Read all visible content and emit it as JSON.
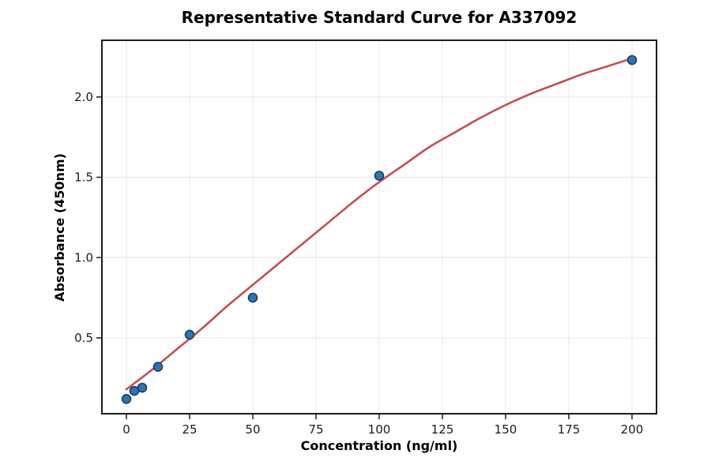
{
  "page": {
    "background": "#ffffff"
  },
  "chart_data": {
    "type": "scatter",
    "title": "Representative Standard Curve for A337092",
    "xlabel": "Concentration (ng/ml)",
    "ylabel": "Absorbance (450nm)",
    "xlim": [
      -9.69,
      209.69
    ],
    "ylim": [
      0.028,
      2.353
    ],
    "grid": true,
    "legend": "none",
    "x_ticks": {
      "values": [
        0,
        25,
        50,
        75,
        100,
        125,
        150,
        175,
        200
      ],
      "labels": [
        "0",
        "25",
        "50",
        "75",
        "100",
        "125",
        "150",
        "175",
        "200"
      ]
    },
    "y_ticks": {
      "values": [
        0.5,
        1.0,
        1.5,
        2.0
      ],
      "labels": [
        "0.5",
        "1.0",
        "1.5",
        "2.0"
      ]
    },
    "series": [
      {
        "name": "standard-points",
        "type": "scatter",
        "x": [
          0,
          3.125,
          6.25,
          12.5,
          25,
          50,
          100,
          200
        ],
        "y": [
          0.12,
          0.17,
          0.19,
          0.32,
          0.52,
          0.75,
          1.51,
          2.23
        ]
      },
      {
        "name": "fitted-curve",
        "type": "line",
        "x": [
          0,
          10,
          20,
          30,
          40,
          50,
          60,
          70,
          80,
          90,
          100,
          110,
          120,
          130,
          140,
          150,
          160,
          170,
          180,
          190,
          200
        ],
        "y": [
          0.18,
          0.3,
          0.43,
          0.56,
          0.7,
          0.83,
          0.96,
          1.09,
          1.22,
          1.35,
          1.47,
          1.58,
          1.69,
          1.78,
          1.87,
          1.95,
          2.02,
          2.08,
          2.14,
          2.19,
          2.24
        ]
      }
    ],
    "colors": {
      "marker_fill": "#2e74b5",
      "marker_edge": "#17405f",
      "curve": "#c44e52",
      "grid": "#e8e8e8",
      "spine": "#1c1c1c",
      "tick": "#1c1c1c",
      "text": "#000000"
    }
  }
}
